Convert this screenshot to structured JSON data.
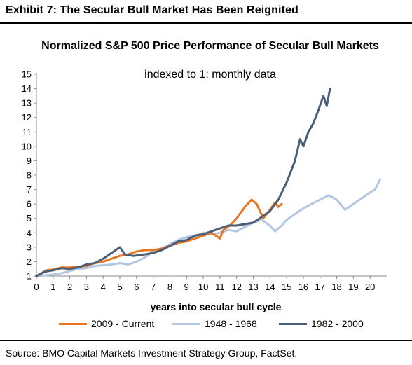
{
  "exhibit_title": "Exhibit 7: The Secular Bull Market Has Been Reignited",
  "source": "Source: BMO Capital Markets Investment Strategy Group, FactSet.",
  "colors": {
    "2009": "#E87722",
    "1948": "#B3C6E0",
    "1982": "#4B5E78"
  },
  "chart_data": {
    "type": "line",
    "title": "Normalized S&P 500 Price Performance of  Secular Bull Markets",
    "subtitle": "indexed to 1; monthly data",
    "xlabel": "years into secular bull cycle",
    "ylabel": "",
    "xlim": [
      0,
      21
    ],
    "ylim": [
      1,
      15
    ],
    "x_ticks": [
      "0",
      "1",
      "2",
      "3",
      "4",
      "5",
      "6",
      "7",
      "8",
      "9",
      "10",
      "11",
      "12",
      "13",
      "14",
      "15",
      "16",
      "17",
      "18",
      "19",
      "20"
    ],
    "y_ticks": [
      "1",
      "2",
      "3",
      "4",
      "5",
      "6",
      "7",
      "8",
      "9",
      "10",
      "11",
      "12",
      "13",
      "14",
      "15"
    ],
    "grid": false,
    "legend_position": "bottom",
    "series": [
      {
        "name": "2009 - Current",
        "color": "#E87722",
        "points": [
          [
            0,
            1.0
          ],
          [
            0.3,
            1.2
          ],
          [
            0.6,
            1.4
          ],
          [
            1,
            1.45
          ],
          [
            1.5,
            1.6
          ],
          [
            2,
            1.6
          ],
          [
            2.5,
            1.65
          ],
          [
            3,
            1.7
          ],
          [
            3.5,
            1.9
          ],
          [
            4,
            2.0
          ],
          [
            4.5,
            2.2
          ],
          [
            5,
            2.4
          ],
          [
            5.5,
            2.5
          ],
          [
            6,
            2.7
          ],
          [
            6.5,
            2.8
          ],
          [
            7,
            2.8
          ],
          [
            7.5,
            2.9
          ],
          [
            8,
            3.1
          ],
          [
            8.5,
            3.3
          ],
          [
            9,
            3.4
          ],
          [
            9.5,
            3.6
          ],
          [
            10,
            3.8
          ],
          [
            10.5,
            4.0
          ],
          [
            11,
            3.6
          ],
          [
            11.2,
            4.2
          ],
          [
            11.6,
            4.5
          ],
          [
            12,
            5.0
          ],
          [
            12.5,
            5.8
          ],
          [
            12.9,
            6.3
          ],
          [
            13.2,
            6.0
          ],
          [
            13.6,
            5.0
          ],
          [
            14,
            5.6
          ],
          [
            14.3,
            6.1
          ],
          [
            14.5,
            5.8
          ],
          [
            14.7,
            6.0
          ]
        ]
      },
      {
        "name": "1948 - 1968",
        "color": "#B3C6E0",
        "points": [
          [
            0,
            1.0
          ],
          [
            0.5,
            1.05
          ],
          [
            1,
            1.1
          ],
          [
            1.5,
            1.2
          ],
          [
            2,
            1.35
          ],
          [
            2.5,
            1.5
          ],
          [
            3,
            1.55
          ],
          [
            3.5,
            1.7
          ],
          [
            4,
            1.75
          ],
          [
            4.5,
            1.8
          ],
          [
            5,
            1.9
          ],
          [
            5.5,
            1.8
          ],
          [
            6,
            2.0
          ],
          [
            6.5,
            2.3
          ],
          [
            7,
            2.7
          ],
          [
            7.5,
            2.9
          ],
          [
            8,
            3.2
          ],
          [
            8.5,
            3.5
          ],
          [
            9,
            3.7
          ],
          [
            9.5,
            3.8
          ],
          [
            10,
            4.0
          ],
          [
            10.5,
            3.9
          ],
          [
            11,
            4.0
          ],
          [
            11.5,
            4.2
          ],
          [
            12,
            4.1
          ],
          [
            12.5,
            4.4
          ],
          [
            13,
            4.7
          ],
          [
            13.5,
            4.9
          ],
          [
            14,
            4.5
          ],
          [
            14.3,
            4.1
          ],
          [
            14.7,
            4.5
          ],
          [
            15,
            4.9
          ],
          [
            15.5,
            5.3
          ],
          [
            16,
            5.7
          ],
          [
            16.5,
            6.0
          ],
          [
            17,
            6.3
          ],
          [
            17.5,
            6.6
          ],
          [
            18,
            6.3
          ],
          [
            18.5,
            5.6
          ],
          [
            19,
            6.0
          ],
          [
            19.5,
            6.4
          ],
          [
            20,
            6.8
          ],
          [
            20.3,
            7.0
          ],
          [
            20.6,
            7.7
          ]
        ]
      },
      {
        "name": "1982 - 2000",
        "color": "#4B5E78",
        "points": [
          [
            0,
            1.0
          ],
          [
            0.5,
            1.3
          ],
          [
            1,
            1.4
          ],
          [
            1.5,
            1.55
          ],
          [
            2,
            1.5
          ],
          [
            2.5,
            1.6
          ],
          [
            3,
            1.8
          ],
          [
            3.5,
            1.9
          ],
          [
            4,
            2.2
          ],
          [
            4.5,
            2.6
          ],
          [
            5,
            3.0
          ],
          [
            5.3,
            2.5
          ],
          [
            5.8,
            2.4
          ],
          [
            6.5,
            2.5
          ],
          [
            7,
            2.6
          ],
          [
            7.5,
            2.8
          ],
          [
            8,
            3.1
          ],
          [
            8.5,
            3.4
          ],
          [
            9,
            3.5
          ],
          [
            9.5,
            3.8
          ],
          [
            10,
            3.9
          ],
          [
            10.5,
            4.1
          ],
          [
            11,
            4.3
          ],
          [
            11.5,
            4.5
          ],
          [
            12,
            4.5
          ],
          [
            12.5,
            4.6
          ],
          [
            13,
            4.7
          ],
          [
            13.5,
            5.1
          ],
          [
            14,
            5.5
          ],
          [
            14.5,
            6.3
          ],
          [
            15,
            7.5
          ],
          [
            15.5,
            9.0
          ],
          [
            15.8,
            10.5
          ],
          [
            16,
            10.0
          ],
          [
            16.3,
            11.0
          ],
          [
            16.6,
            11.6
          ],
          [
            16.9,
            12.5
          ],
          [
            17.2,
            13.5
          ],
          [
            17.4,
            12.8
          ],
          [
            17.6,
            14.0
          ]
        ]
      }
    ]
  }
}
